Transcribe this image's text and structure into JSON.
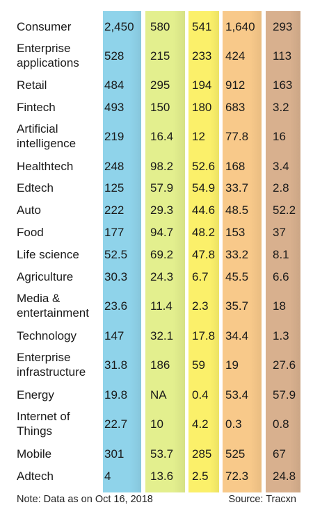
{
  "chart_data": {
    "type": "table",
    "column_colors": [
      "#8fd3ea",
      "#e3ef8e",
      "#fbf06a",
      "#f8c98a",
      "#d8b08e"
    ],
    "rows": [
      {
        "label": [
          "Consumer"
        ],
        "values": [
          "2,450",
          "580",
          "541",
          "1,640",
          "293"
        ]
      },
      {
        "label": [
          "Enterprise",
          "applications"
        ],
        "values": [
          "528",
          "215",
          "233",
          "424",
          "113"
        ]
      },
      {
        "label": [
          "Retail"
        ],
        "values": [
          "484",
          "295",
          "194",
          "912",
          "163"
        ]
      },
      {
        "label": [
          "Fintech"
        ],
        "values": [
          "493",
          "150",
          "180",
          "683",
          "3.2"
        ]
      },
      {
        "label": [
          "Artificial",
          "intelligence"
        ],
        "values": [
          "219",
          "16.4",
          "12",
          "77.8",
          "16"
        ]
      },
      {
        "label": [
          "Healthtech"
        ],
        "values": [
          "248",
          "98.2",
          "52.6",
          "168",
          "3.4"
        ]
      },
      {
        "label": [
          "Edtech"
        ],
        "values": [
          "125",
          "57.9",
          "54.9",
          "33.7",
          "2.8"
        ]
      },
      {
        "label": [
          "Auto"
        ],
        "values": [
          "222",
          "29.3",
          "44.6",
          "48.5",
          "52.2"
        ]
      },
      {
        "label": [
          "Food"
        ],
        "values": [
          "177",
          "94.7",
          "48.2",
          "153",
          "37"
        ]
      },
      {
        "label": [
          "Life science"
        ],
        "values": [
          "52.5",
          "69.2",
          "47.8",
          "33.2",
          "8.1"
        ]
      },
      {
        "label": [
          "Agriculture"
        ],
        "values": [
          "30.3",
          "24.3",
          "6.7",
          "45.5",
          "6.6"
        ]
      },
      {
        "label": [
          "Media &",
          "entertainment"
        ],
        "values": [
          "23.6",
          "11.4",
          "2.3",
          "35.7",
          "18"
        ]
      },
      {
        "label": [
          "Technology"
        ],
        "values": [
          "147",
          "32.1",
          "17.8",
          "34.4",
          "1.3"
        ]
      },
      {
        "label": [
          "Enterprise",
          "infrastructure"
        ],
        "values": [
          "31.8",
          "186",
          "59",
          "19",
          "27.6"
        ]
      },
      {
        "label": [
          "Energy"
        ],
        "values": [
          "19.8",
          "NA",
          "0.4",
          "53.4",
          "57.9"
        ]
      },
      {
        "label": [
          "Internet of",
          "Things"
        ],
        "values": [
          "22.7",
          "10",
          "4.2",
          "0.3",
          "0.8"
        ]
      },
      {
        "label": [
          "Mobile"
        ],
        "values": [
          "301",
          "53.7",
          "285",
          "525",
          "67"
        ]
      },
      {
        "label": [
          "Adtech"
        ],
        "values": [
          "4",
          "13.6",
          "2.5",
          "72.3",
          "24.8"
        ]
      }
    ]
  },
  "footer": {
    "note": "Note: Data as on Oct 16, 2018",
    "source": "Source: Tracxn"
  }
}
